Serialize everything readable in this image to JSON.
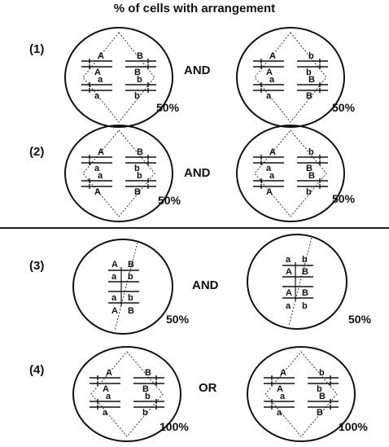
{
  "title": "% of cells with arrangement",
  "options": [
    {
      "number": "(1)",
      "connector": "AND",
      "cells": [
        {
          "percent": "50%",
          "labels": [
            [
              "A",
              "B"
            ],
            [
              "A",
              "B"
            ],
            [
              "a",
              "b"
            ],
            [
              "a",
              "b"
            ]
          ]
        },
        {
          "percent": "50%",
          "labels": [
            [
              "A",
              "b"
            ],
            [
              "A",
              "b"
            ],
            [
              "a",
              "B"
            ],
            [
              "a",
              "B"
            ]
          ]
        }
      ]
    },
    {
      "number": "(2)",
      "connector": "AND",
      "cells": [
        {
          "percent": "50%",
          "labels": [
            [
              "A",
              "B"
            ],
            [
              "a",
              "b"
            ],
            [
              "a",
              "b"
            ],
            [
              "A",
              "B"
            ]
          ]
        },
        {
          "percent": "50%",
          "labels": [
            [
              "A",
              "b"
            ],
            [
              "a",
              "B"
            ],
            [
              "a",
              "B"
            ],
            [
              "A",
              "b"
            ]
          ]
        }
      ]
    },
    {
      "number": "(3)",
      "connector": "AND",
      "cells": [
        {
          "percent": "50%",
          "labels": [
            [
              "A",
              "B"
            ],
            [
              "a",
              "b"
            ],
            [
              "a",
              "b"
            ],
            [
              "A",
              "B"
            ]
          ]
        },
        {
          "percent": "50%",
          "labels": [
            [
              "a",
              "b"
            ],
            [
              "A",
              "B"
            ],
            [
              "A",
              "B"
            ],
            [
              "a",
              "b"
            ]
          ]
        }
      ]
    },
    {
      "number": "(4)",
      "connector": "OR",
      "cells": [
        {
          "percent": "100%",
          "labels": [
            [
              "A",
              "B"
            ],
            [
              "A",
              "B"
            ],
            [
              "a",
              "b"
            ],
            [
              "a",
              "b"
            ]
          ]
        },
        {
          "percent": "100%",
          "labels": [
            [
              "A",
              "b"
            ],
            [
              "A",
              "b"
            ],
            [
              "a",
              "B"
            ],
            [
              "a",
              "B"
            ]
          ]
        }
      ]
    }
  ]
}
